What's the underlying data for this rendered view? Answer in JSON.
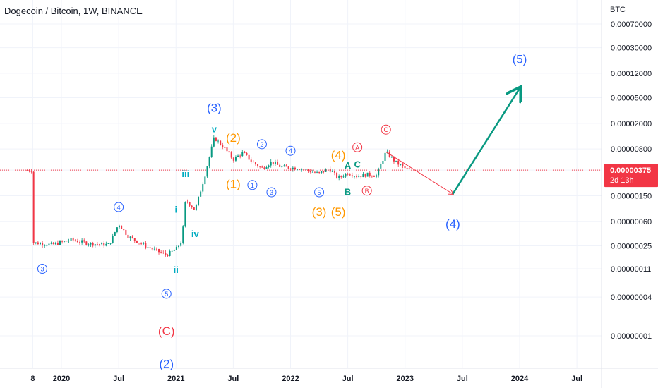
{
  "header": {
    "title": "Dogecoin / Bitcoin, 1W, BINANCE",
    "unit": "BTC"
  },
  "price_tag": {
    "value": "0.00000375",
    "countdown": "2d 13h",
    "color": "#f23645"
  },
  "colors": {
    "up": "#089981",
    "down": "#f23645",
    "blue": "#2962ff",
    "orange": "#ff9800",
    "green": "#089981",
    "red": "#f23645",
    "teal": "#00acc1"
  },
  "chart_data": {
    "type": "candlestick",
    "symbol": "Dogecoin / Bitcoin",
    "interval": "1W",
    "exchange": "BINANCE",
    "y_scale": "log",
    "y_unit": "BTC",
    "y_ticks": [
      "0.00070000",
      "0.00030000",
      "0.00012000",
      "0.00005000",
      "0.00002000",
      "0.00000800",
      "0.00000375",
      "0.00000150",
      "0.00000060",
      "0.00000025",
      "0.00000011",
      "0.00000004",
      "0.00000001"
    ],
    "x_ticks": [
      "8",
      "2020",
      "Jul",
      "2021",
      "Jul",
      "2022",
      "Jul",
      "2023",
      "Jul",
      "2024",
      "Jul"
    ],
    "last_price": 3.75e-06,
    "price_path": [
      [
        "2019-10",
        2.8e-07
      ],
      [
        "2019-12",
        2.6e-07
      ],
      [
        "2020-02",
        3.1e-07
      ],
      [
        "2020-04",
        2.7e-07
      ],
      [
        "2020-06",
        2.6e-07
      ],
      [
        "2020-07",
        5.5e-07
      ],
      [
        "2020-08",
        3.5e-07
      ],
      [
        "2020-10",
        2.4e-07
      ],
      [
        "2020-12",
        1.8e-07
      ],
      [
        "2021-01",
        2.2e-07
      ],
      [
        "2021-01-20",
        3e-07
      ],
      [
        "2021-02",
        1.3e-06
      ],
      [
        "2021-02-15",
        1.1e-06
      ],
      [
        "2021-03",
        9e-07
      ],
      [
        "2021-04",
        3e-06
      ],
      [
        "2021-05",
        1.2e-05
      ],
      [
        "2021-06",
        8.5e-06
      ],
      [
        "2021-07",
        5.5e-06
      ],
      [
        "2021-08",
        7e-06
      ],
      [
        "2021-09",
        5e-06
      ],
      [
        "2021-10",
        4e-06
      ],
      [
        "2021-11",
        5e-06
      ],
      [
        "2021-12",
        4.2e-06
      ],
      [
        "2022-02",
        4e-06
      ],
      [
        "2022-04",
        3.3e-06
      ],
      [
        "2022-05",
        4e-06
      ],
      [
        "2022-06",
        2.8e-06
      ],
      [
        "2022-07",
        3.4e-06
      ],
      [
        "2022-08",
        3e-06
      ],
      [
        "2022-09",
        3.2e-06
      ],
      [
        "2022-10",
        3.1e-06
      ],
      [
        "2022-11",
        7.2e-06
      ],
      [
        "2022-12",
        5e-06
      ],
      [
        "2023-01",
        4e-06
      ],
      [
        "2023-01-15",
        3.75e-06
      ]
    ],
    "projection": [
      [
        "2022-11",
        7.2e-06
      ],
      [
        "2023-06",
        1.6e-06
      ],
      [
        "2024-01",
        7e-05
      ]
    ],
    "wave_labels": [
      {
        "text": "(3)",
        "color": "blue",
        "date": "2021-05",
        "price": 3.5e-05
      },
      {
        "text": "v",
        "color": "teal",
        "date": "2021-05",
        "price": 1.7e-05
      },
      {
        "text": "iii",
        "color": "teal",
        "date": "2021-02",
        "price": 3.4e-06
      },
      {
        "text": "i",
        "color": "teal",
        "date": "2021-01",
        "price": 9.5e-07
      },
      {
        "text": "iv",
        "color": "teal",
        "date": "2021-03",
        "price": 4e-07
      },
      {
        "text": "ii",
        "color": "teal",
        "date": "2021-01",
        "price": 1.1e-07
      },
      {
        "text": "4",
        "circled": true,
        "color": "blue",
        "date": "2020-07",
        "price": 1e-06
      },
      {
        "text": "3",
        "circled": true,
        "color": "blue",
        "date": "2019-11",
        "price": 1.1e-07
      },
      {
        "text": "5",
        "circled": true,
        "color": "blue",
        "date": "2020-12",
        "price": 4.5e-08
      },
      {
        "text": "(C)",
        "color": "red",
        "date": "2020-12",
        "price": 1.2e-08
      },
      {
        "text": "(2)",
        "color": "blue",
        "date": "2020-12",
        "price": 3.7e-09
      },
      {
        "text": "(2)",
        "color": "orange",
        "date": "2021-07",
        "price": 1.2e-05
      },
      {
        "text": "(1)",
        "color": "orange",
        "date": "2021-07",
        "price": 2.3e-06
      },
      {
        "text": "2",
        "circled": true,
        "color": "blue",
        "date": "2021-10",
        "price": 9.5e-06
      },
      {
        "text": "1",
        "circled": true,
        "color": "blue",
        "date": "2021-09",
        "price": 2.2e-06
      },
      {
        "text": "3",
        "circled": true,
        "color": "blue",
        "date": "2021-11",
        "price": 1.7e-06
      },
      {
        "text": "4",
        "circled": true,
        "color": "blue",
        "date": "2022-01",
        "price": 7.5e-06
      },
      {
        "text": "5",
        "circled": true,
        "color": "blue",
        "date": "2022-04",
        "price": 1.7e-06
      },
      {
        "text": "(4)",
        "color": "orange",
        "date": "2022-06",
        "price": 6.5e-06
      },
      {
        "text": "(3)",
        "color": "orange",
        "date": "2022-04",
        "price": 8.5e-07
      },
      {
        "text": "(5)",
        "color": "orange",
        "date": "2022-06",
        "price": 8.5e-07
      },
      {
        "text": "A",
        "color": "green",
        "date": "2022-07",
        "price": 4.6e-06
      },
      {
        "text": "C",
        "color": "green",
        "date": "2022-08",
        "price": 4.8e-06
      },
      {
        "text": "B",
        "color": "green",
        "date": "2022-07",
        "price": 1.8e-06
      },
      {
        "text": "A",
        "circled": true,
        "color": "red",
        "date": "2022-08",
        "price": 8.5e-06
      },
      {
        "text": "B",
        "circled": true,
        "color": "red",
        "date": "2022-09",
        "price": 1.8e-06
      },
      {
        "text": "C",
        "circled": true,
        "color": "red",
        "date": "2022-11",
        "price": 1.6e-05
      },
      {
        "text": "(4)",
        "color": "blue",
        "date": "2023-06",
        "price": 5.5e-07
      },
      {
        "text": "(5)",
        "color": "blue",
        "date": "2024-01",
        "price": 0.0002
      }
    ]
  }
}
